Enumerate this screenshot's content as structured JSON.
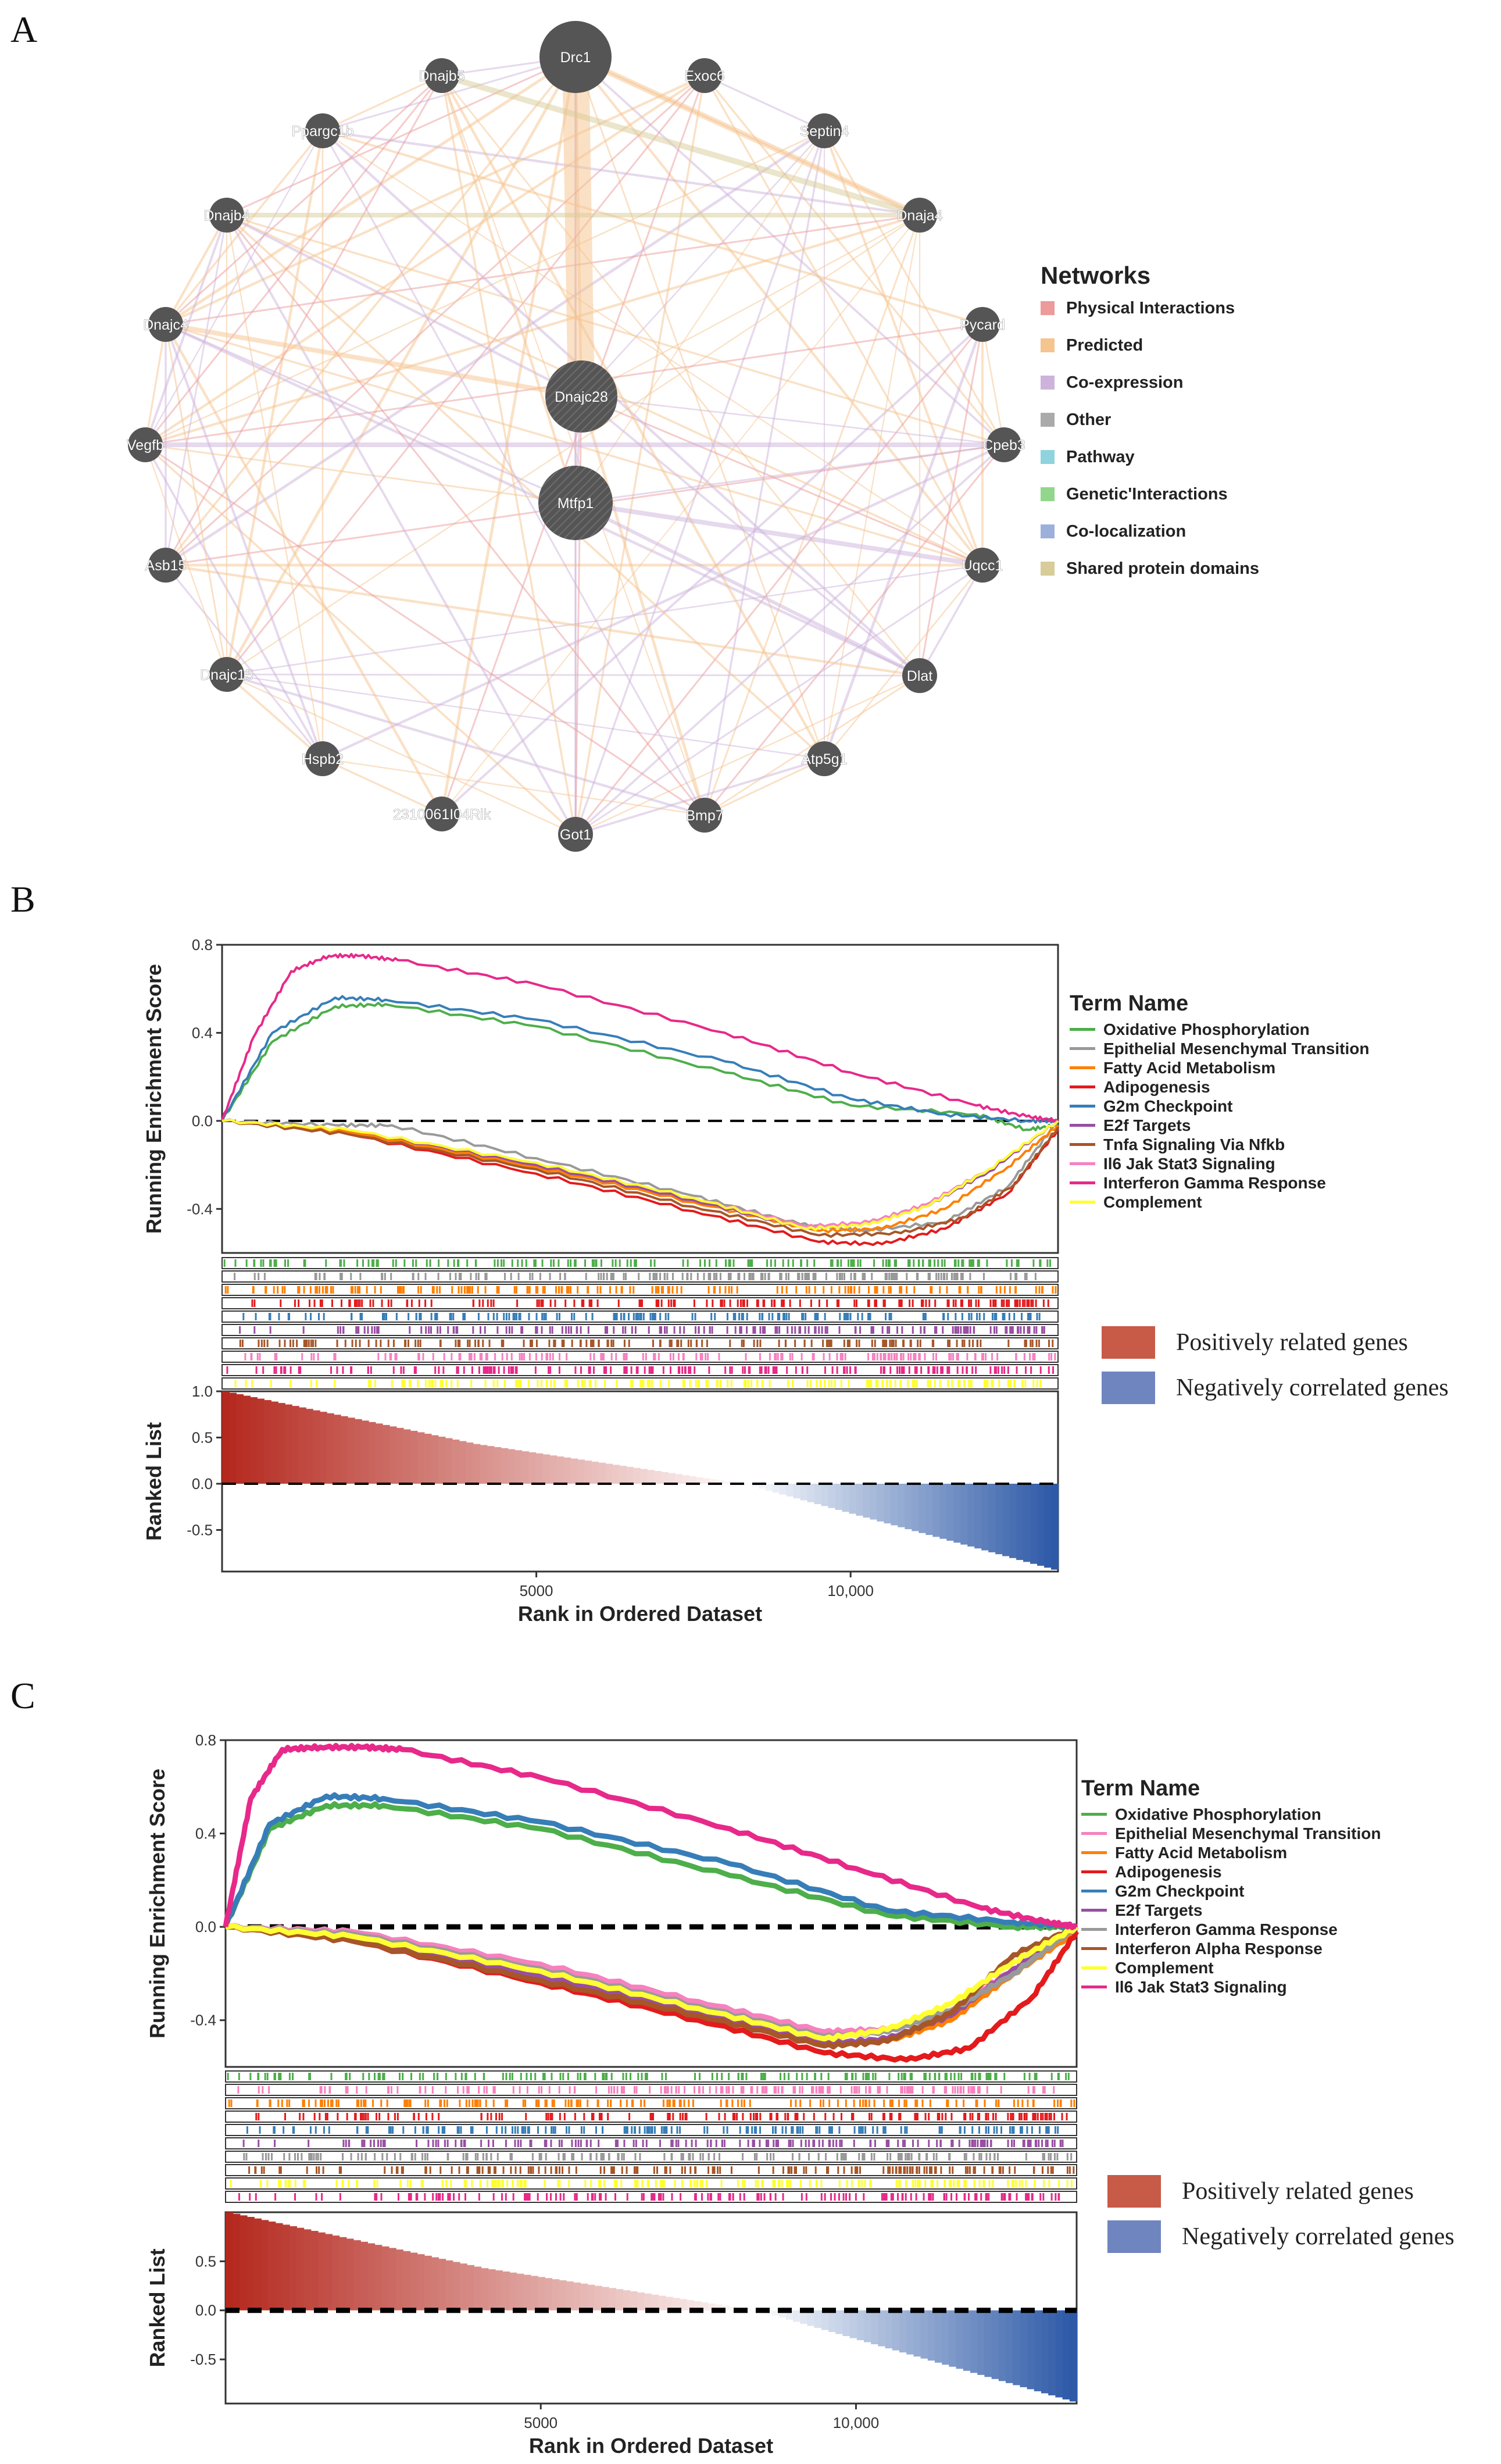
{
  "panels": {
    "a": "A",
    "b": "B",
    "c": "C"
  },
  "network": {
    "legend_title": "Networks",
    "legend": [
      {
        "label": "Physical Interactions",
        "color": "#ec9a9a"
      },
      {
        "label": "Predicted",
        "color": "#f6c48e"
      },
      {
        "label": "Co-expression",
        "color": "#cdb3dc"
      },
      {
        "label": "Other",
        "color": "#aaaaaa"
      },
      {
        "label": "Pathway",
        "color": "#8fd3dd"
      },
      {
        "label": "Genetic'Interactions",
        "color": "#92d68c"
      },
      {
        "label": "Co-localization",
        "color": "#9db0dc"
      },
      {
        "label": "Shared protein domains",
        "color": "#d8cc98"
      }
    ],
    "nodes": [
      "Drc1",
      "Exoc6",
      "Septin4",
      "Dnaja4",
      "Pycard",
      "Cpeb3",
      "Uqcc1",
      "Dlat",
      "Atp5g1",
      "Bmp7",
      "Got1",
      "2310061I04Rik",
      "Hspb2",
      "Dnajc15",
      "Asb15",
      "Vegfb",
      "Dnajc4",
      "Dnajb4",
      "Ppargc1b",
      "Dnajb5",
      "Dnajc28",
      "Mtfp1"
    ]
  },
  "gsea_b": {
    "y_label_top": "Running Enrichment Score",
    "y_label_bottom": "Ranked List",
    "x_label": "Rank in Ordered Dataset",
    "legend_title": "Term Name",
    "terms": [
      {
        "label": "Oxidative Phosphorylation",
        "color": "#4dae4a"
      },
      {
        "label": "Epithelial Mesenchymal Transition",
        "color": "#999999"
      },
      {
        "label": "Fatty Acid Metabolism",
        "color": "#ff7f00"
      },
      {
        "label": "Adipogenesis",
        "color": "#e41a1c"
      },
      {
        "label": "G2m Checkpoint",
        "color": "#377eb8"
      },
      {
        "label": "E2f Targets",
        "color": "#984ea3"
      },
      {
        "label": "Tnfa Signaling Via Nfkb",
        "color": "#a65628"
      },
      {
        "label": "Il6 Jak Stat3 Signaling",
        "color": "#f781bf"
      },
      {
        "label": "Interferon Gamma Response",
        "color": "#e7298a"
      },
      {
        "label": "Complement",
        "color": "#ffff33"
      }
    ],
    "top_ticks": [
      "0.8",
      "0.4",
      "0.0",
      "-0.4"
    ],
    "bottom_ticks": [
      "1.0",
      "0.5",
      "0.0",
      "-0.5"
    ],
    "x_ticks": [
      "5000",
      "10,000"
    ],
    "gene_legend": [
      {
        "label": "Positively related genes",
        "color": "#c85a48"
      },
      {
        "label": "Negatively correlated genes",
        "color": "#6f85c0"
      }
    ]
  },
  "gsea_c": {
    "y_label_top": "Running Enrichment Score",
    "y_label_bottom": "Ranked List",
    "x_label": "Rank in Ordered Dataset",
    "legend_title": "Term Name",
    "terms": [
      {
        "label": "Oxidative Phosphorylation",
        "color": "#4dae4a"
      },
      {
        "label": "Epithelial Mesenchymal Transition",
        "color": "#f781bf"
      },
      {
        "label": "Fatty Acid Metabolism",
        "color": "#ff7f00"
      },
      {
        "label": "Adipogenesis",
        "color": "#e41a1c"
      },
      {
        "label": "G2m Checkpoint",
        "color": "#377eb8"
      },
      {
        "label": "E2f Targets",
        "color": "#984ea3"
      },
      {
        "label": "Interferon Gamma Response",
        "color": "#999999"
      },
      {
        "label": "Interferon Alpha Response",
        "color": "#a65628"
      },
      {
        "label": "Complement",
        "color": "#ffff33"
      },
      {
        "label": "Il6 Jak Stat3 Signaling",
        "color": "#e7298a"
      }
    ],
    "top_ticks": [
      "0.8",
      "0.4",
      "0.0",
      "-0.4"
    ],
    "bottom_ticks": [
      "0.5",
      "0.0",
      "-0.5"
    ],
    "x_ticks": [
      "5000",
      "10,000"
    ],
    "gene_legend": [
      {
        "label": "Positively related genes",
        "color": "#c85a48"
      },
      {
        "label": "Negatively correlated genes",
        "color": "#6f85c0"
      }
    ]
  },
  "chart_data": [
    {
      "type": "line",
      "title": "B",
      "xlabel": "Rank in Ordered Dataset",
      "ylabel": "Running Enrichment Score",
      "xlim": [
        0,
        13300
      ],
      "ylim": [
        -0.6,
        0.8
      ],
      "series": [
        {
          "name": "Oxidative Phosphorylation",
          "x": [
            0,
            800,
            1800,
            2600,
            5000,
            8000,
            10000,
            12000,
            12800,
            13300
          ],
          "values": [
            0,
            0.36,
            0.52,
            0.53,
            0.43,
            0.22,
            0.07,
            0.03,
            -0.04,
            -0.02
          ]
        },
        {
          "name": "Epithelial Mesenchymal Transition",
          "x": [
            0,
            1800,
            2700,
            5000,
            7500,
            9200,
            10200,
            11500,
            12500,
            13300
          ],
          "values": [
            0,
            -0.02,
            -0.02,
            -0.17,
            -0.34,
            -0.47,
            -0.5,
            -0.46,
            -0.3,
            0
          ]
        },
        {
          "name": "Fatty Acid Metabolism",
          "x": [
            0,
            2000,
            5000,
            7500,
            9500,
            10500,
            11500,
            12500,
            13300
          ],
          "values": [
            0,
            -0.05,
            -0.21,
            -0.37,
            -0.5,
            -0.49,
            -0.4,
            -0.21,
            -0.02
          ]
        },
        {
          "name": "Adipogenesis",
          "x": [
            0,
            2000,
            5000,
            7500,
            9500,
            10500,
            11500,
            12500,
            13300
          ],
          "values": [
            0,
            -0.06,
            -0.24,
            -0.41,
            -0.55,
            -0.56,
            -0.49,
            -0.33,
            -0.04
          ]
        },
        {
          "name": "G2m Checkpoint",
          "x": [
            0,
            800,
            1800,
            2600,
            5000,
            8000,
            10000,
            11500,
            12800,
            13300
          ],
          "values": [
            0,
            0.4,
            0.56,
            0.55,
            0.46,
            0.27,
            0.1,
            0.03,
            0,
            0
          ]
        },
        {
          "name": "E2f Targets",
          "x": [
            0,
            2000,
            5000,
            7500,
            9300,
            10300,
            11200,
            12200,
            13300
          ],
          "values": [
            0,
            -0.04,
            -0.2,
            -0.36,
            -0.49,
            -0.47,
            -0.39,
            -0.23,
            0
          ]
        },
        {
          "name": "Tnfa Signaling Via Nfkb",
          "x": [
            0,
            2000,
            5000,
            7500,
            9500,
            10800,
            11800,
            12600,
            13300
          ],
          "values": [
            0,
            -0.06,
            -0.22,
            -0.39,
            -0.52,
            -0.51,
            -0.44,
            -0.29,
            -0.03
          ]
        },
        {
          "name": "Il6 Jak Stat3 Signaling",
          "x": [
            0,
            2000,
            5000,
            7500,
            9300,
            10300,
            11200,
            12200,
            13300
          ],
          "values": [
            0,
            -0.04,
            -0.19,
            -0.35,
            -0.48,
            -0.46,
            -0.38,
            -0.22,
            0
          ]
        },
        {
          "name": "Interferon Gamma Response",
          "x": [
            0,
            500,
            1100,
            1700,
            2200,
            2800,
            5000,
            8000,
            10000,
            12000,
            12800,
            13300
          ],
          "values": [
            0,
            0.38,
            0.68,
            0.75,
            0.75,
            0.73,
            0.62,
            0.4,
            0.22,
            0.07,
            0.02,
            0
          ]
        },
        {
          "name": "Complement",
          "x": [
            0,
            2000,
            5000,
            7500,
            9300,
            10300,
            11200,
            12200,
            13300
          ],
          "values": [
            0,
            -0.04,
            -0.19,
            -0.35,
            -0.49,
            -0.47,
            -0.39,
            -0.22,
            0
          ]
        }
      ]
    },
    {
      "type": "line",
      "title": "C",
      "xlabel": "Rank in Ordered Dataset",
      "ylabel": "Running Enrichment Score",
      "xlim": [
        0,
        13500
      ],
      "ylim": [
        -0.6,
        0.8
      ],
      "series": [
        {
          "name": "Oxidative Phosphorylation",
          "x": [
            0,
            700,
            1600,
            2500,
            5000,
            8000,
            10500,
            12500,
            13500
          ],
          "values": [
            0,
            0.42,
            0.52,
            0.52,
            0.42,
            0.22,
            0.05,
            0,
            0
          ]
        },
        {
          "name": "Epithelial Mesenchymal Transition",
          "x": [
            0,
            2000,
            5000,
            7500,
            9500,
            10500,
            11500,
            12500,
            13500
          ],
          "values": [
            0,
            -0.02,
            -0.16,
            -0.32,
            -0.45,
            -0.44,
            -0.36,
            -0.18,
            0
          ]
        },
        {
          "name": "Fatty Acid Metabolism",
          "x": [
            0,
            2000,
            5000,
            7500,
            9500,
            10500,
            11500,
            12500,
            13500
          ],
          "values": [
            0,
            -0.06,
            -0.22,
            -0.37,
            -0.5,
            -0.49,
            -0.4,
            -0.2,
            -0.02
          ]
        },
        {
          "name": "Adipogenesis",
          "x": [
            0,
            2000,
            5000,
            7500,
            9500,
            10800,
            11800,
            12800,
            13500
          ],
          "values": [
            0,
            -0.06,
            -0.24,
            -0.4,
            -0.54,
            -0.57,
            -0.52,
            -0.3,
            -0.02
          ]
        },
        {
          "name": "G2m Checkpoint",
          "x": [
            0,
            700,
            1600,
            2500,
            5000,
            8000,
            10500,
            12500,
            13500
          ],
          "values": [
            0,
            0.44,
            0.56,
            0.55,
            0.45,
            0.27,
            0.07,
            0.02,
            0
          ]
        },
        {
          "name": "E2f Targets",
          "x": [
            0,
            2000,
            5000,
            7500,
            9500,
            10500,
            11500,
            12500,
            13500
          ],
          "values": [
            0,
            -0.05,
            -0.21,
            -0.37,
            -0.5,
            -0.48,
            -0.38,
            -0.18,
            0
          ]
        },
        {
          "name": "Interferon Gamma Response",
          "x": [
            0,
            2000,
            5000,
            7500,
            9500,
            10500,
            11500,
            12500,
            13500
          ],
          "values": [
            0,
            -0.03,
            -0.18,
            -0.34,
            -0.47,
            -0.45,
            -0.36,
            -0.2,
            0
          ]
        },
        {
          "name": "Interferon Alpha Response",
          "x": [
            0,
            2000,
            5000,
            7500,
            9500,
            10500,
            11500,
            12500,
            13500
          ],
          "values": [
            0,
            -0.06,
            -0.23,
            -0.38,
            -0.51,
            -0.49,
            -0.37,
            -0.12,
            0
          ]
        },
        {
          "name": "Complement",
          "x": [
            0,
            2000,
            5000,
            7500,
            9500,
            10500,
            11500,
            12500,
            13500
          ],
          "values": [
            0,
            -0.04,
            -0.19,
            -0.35,
            -0.48,
            -0.44,
            -0.33,
            -0.15,
            0
          ]
        },
        {
          "name": "Il6 Jak Stat3 Signaling",
          "x": [
            0,
            400,
            900,
            1500,
            2200,
            2800,
            5000,
            8000,
            10000,
            12000,
            13000,
            13500
          ],
          "values": [
            0,
            0.55,
            0.76,
            0.77,
            0.77,
            0.76,
            0.64,
            0.42,
            0.25,
            0.08,
            0.02,
            0
          ]
        }
      ]
    }
  ]
}
